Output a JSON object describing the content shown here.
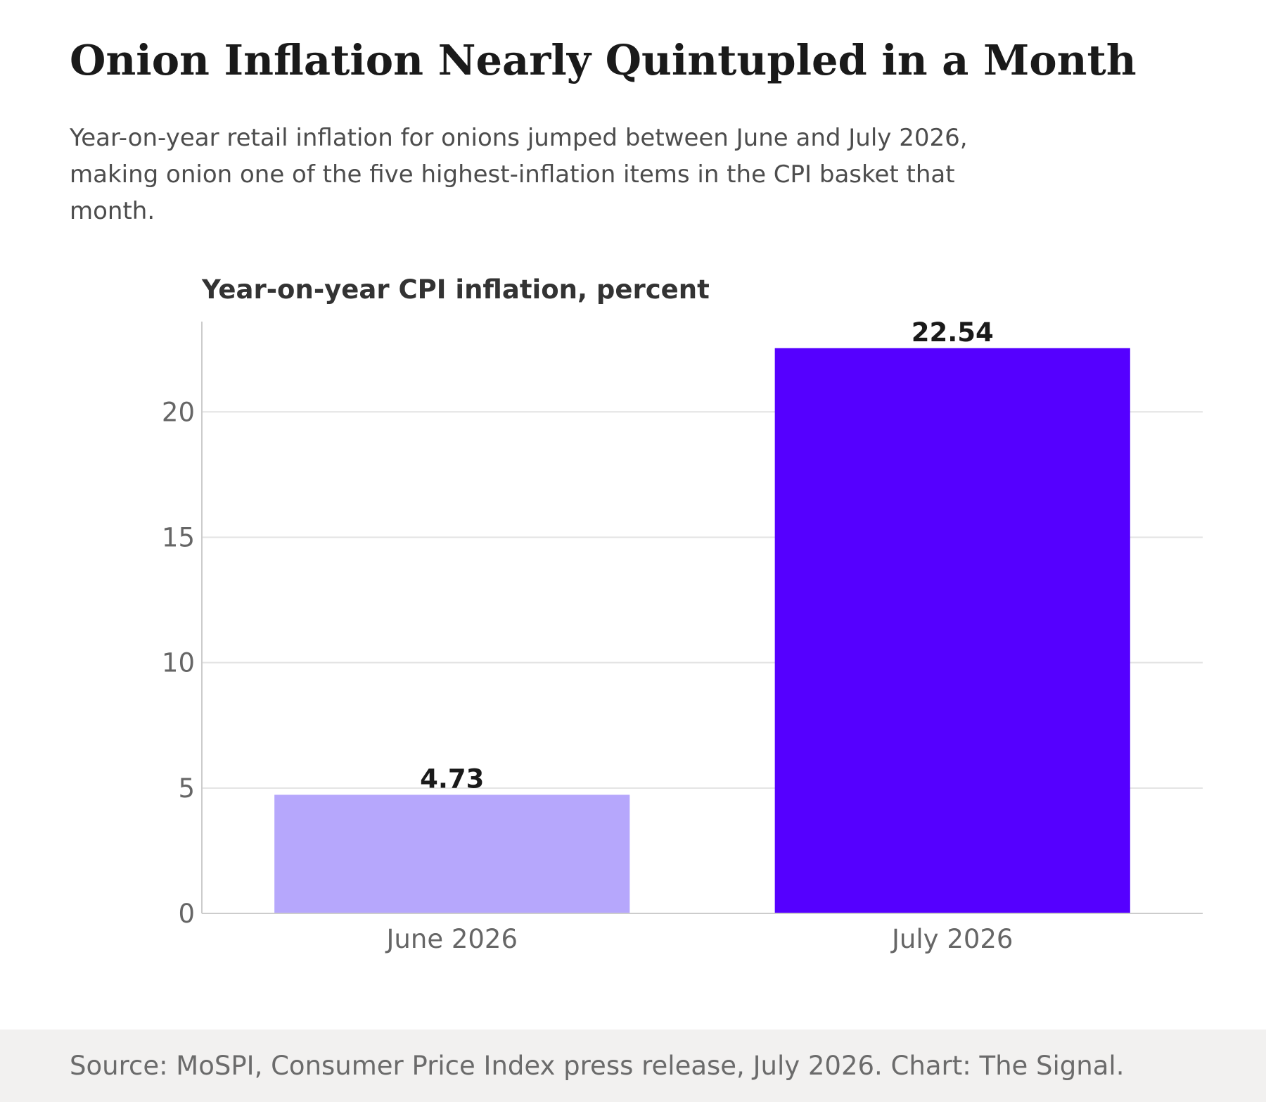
{
  "header": {
    "title": "Onion Inflation Nearly Quintupled in a Month",
    "subtitle": "Year-on-year retail inflation for onions jumped between June and July 2026, making onion one of the five highest-inflation items in the CPI basket that month."
  },
  "chart_data": {
    "type": "bar",
    "title": "Year-on-year CPI inflation, percent",
    "xlabel": "",
    "ylabel": "",
    "categories": [
      "June 2026",
      "July 2026"
    ],
    "values": [
      4.73,
      22.54
    ],
    "value_labels": [
      "4.73",
      "22.54"
    ],
    "bar_colors": [
      "#b6a7fc",
      "#5500ff"
    ],
    "ylim": [
      0,
      23.6
    ],
    "yticks": [
      0,
      5,
      10,
      15,
      20
    ],
    "grid": "horizontal",
    "legend": "none"
  },
  "footer": {
    "source": "Source: MoSPI, Consumer Price Index press release, July 2026. Chart: The Signal."
  }
}
